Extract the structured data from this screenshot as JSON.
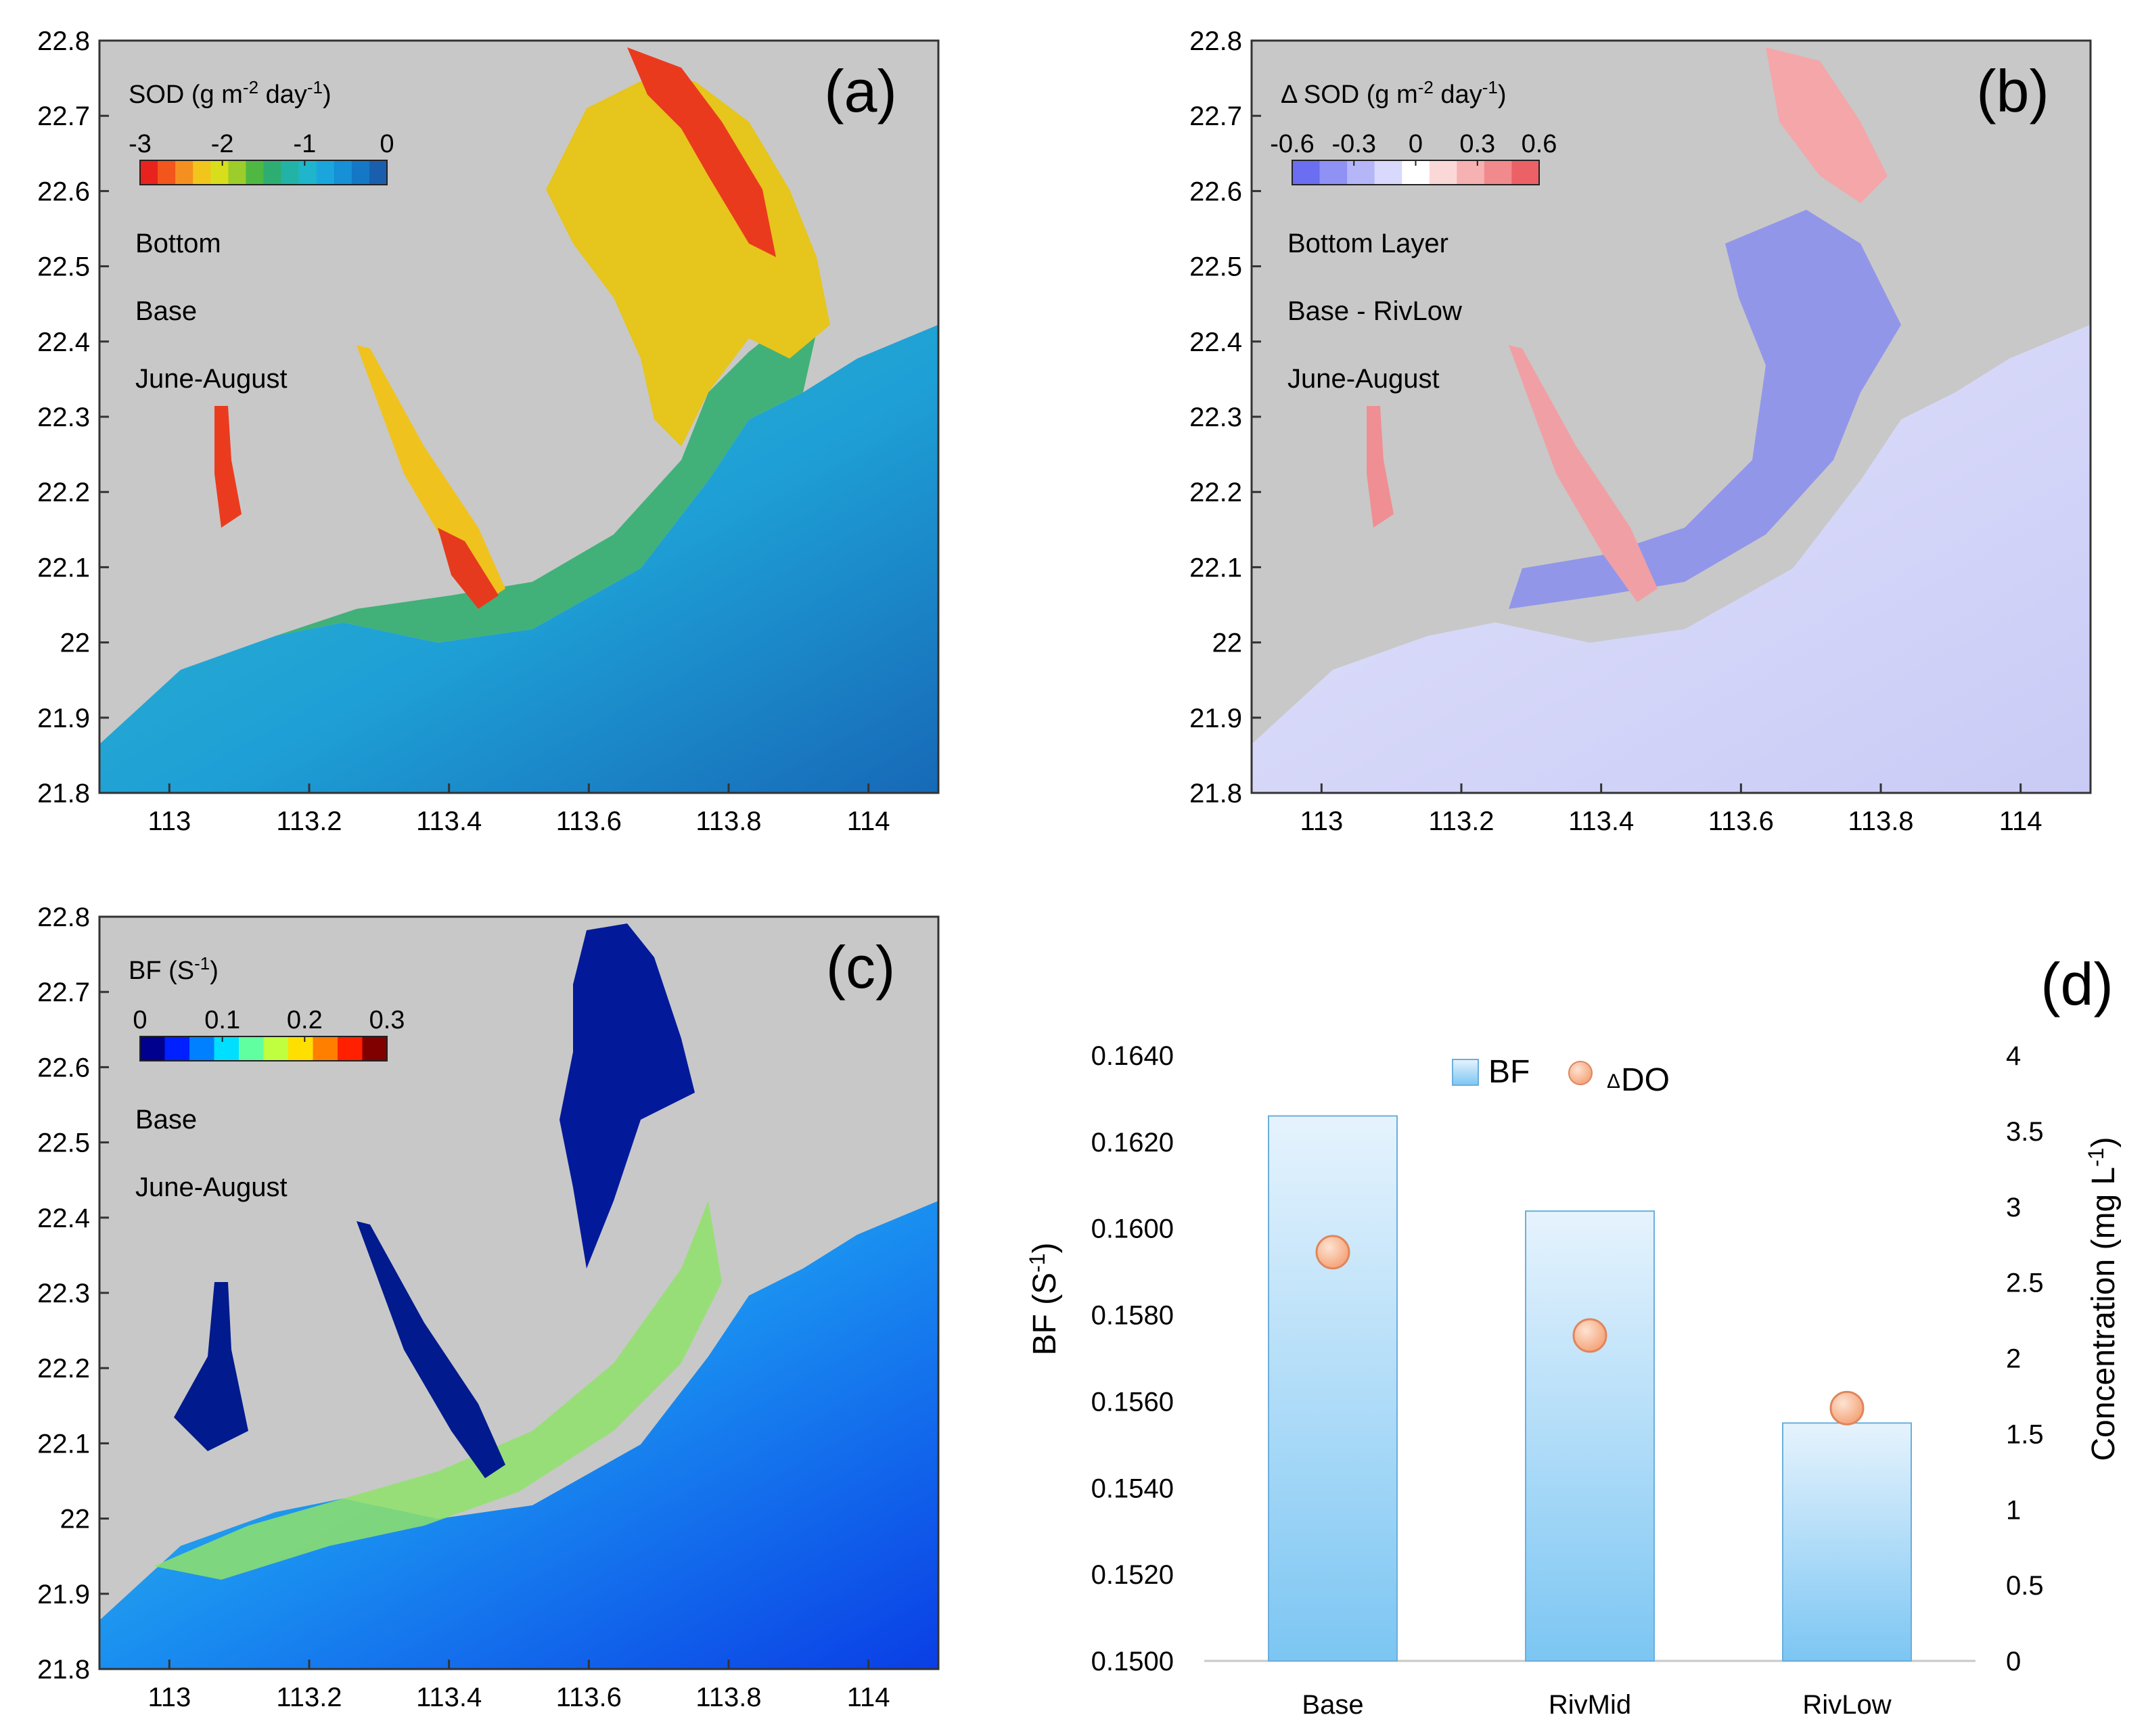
{
  "maps": {
    "x_ticks": [
      "113",
      "113.2",
      "113.4",
      "113.6",
      "113.8",
      "114"
    ],
    "y_ticks": [
      "22.8",
      "22.7",
      "22.6",
      "22.5",
      "22.4",
      "22.3",
      "22.2",
      "22.1",
      "22",
      "21.9",
      "21.8"
    ],
    "x_range": [
      112.9,
      114.1
    ],
    "y_range": [
      21.8,
      22.8
    ],
    "land_color": "#c8c8c8",
    "panels": [
      {
        "id": "a",
        "panel_label": "(a)",
        "colorbar_title_main": "SOD (g m",
        "colorbar_title_sup1": "-2",
        "colorbar_title_mid": " day",
        "colorbar_title_sup2": "-1",
        "colorbar_title_end": ")",
        "colorbar_ticks": [
          "-3",
          "-2",
          "-1",
          "0"
        ],
        "colorbar_colors": [
          "#e8231e",
          "#f2561c",
          "#f59020",
          "#f2c51d",
          "#d9de1c",
          "#9ccd2a",
          "#4eb843",
          "#2ead73",
          "#22b3a6",
          "#1fb5cc",
          "#1aa6dd",
          "#1690d6",
          "#1478c6",
          "#1a5fae"
        ],
        "annotations": [
          "Bottom",
          "Base",
          "June-August"
        ]
      },
      {
        "id": "b",
        "panel_label": "(b)",
        "colorbar_title_main": "Δ SOD (g m",
        "colorbar_title_sup1": "-2",
        "colorbar_title_mid": " day",
        "colorbar_title_sup2": "-1",
        "colorbar_title_end": ")",
        "colorbar_ticks": [
          "-0.6",
          "-0.3",
          "0",
          "0.3",
          "0.6"
        ],
        "colorbar_colors": [
          "#6b6ef0",
          "#8f91f4",
          "#b4b6f8",
          "#d8d9fc",
          "#ffffff",
          "#fbd8d8",
          "#f6b1b3",
          "#f18a8d",
          "#ec6166"
        ],
        "annotations": [
          "Bottom Layer",
          "Base - RivLow",
          "June-August"
        ]
      },
      {
        "id": "c",
        "panel_label": "(c)",
        "colorbar_title_main": "BF (S",
        "colorbar_title_sup1": "-1",
        "colorbar_title_mid": "",
        "colorbar_title_sup2": "",
        "colorbar_title_end": ")",
        "colorbar_ticks": [
          "0",
          "0.1",
          "0.2",
          "0.3"
        ],
        "colorbar_colors": [
          "#00008f",
          "#0020ff",
          "#0080ff",
          "#00dfff",
          "#60ff9f",
          "#bfff40",
          "#ffdf00",
          "#ff7f00",
          "#ff2000",
          "#800000"
        ],
        "annotations": [
          "Base",
          "June-August"
        ]
      }
    ]
  },
  "chart_data": {
    "type": "bar",
    "panel_label": "(d)",
    "categories": [
      "Base",
      "RivMid",
      "RivLow"
    ],
    "series": [
      {
        "name": "BF",
        "axis": "left",
        "kind": "bar",
        "values": [
          0.1626,
          0.1604,
          0.1555
        ]
      },
      {
        "name": "ΔDO",
        "axis": "right",
        "kind": "scatter",
        "values": [
          2.7,
          2.15,
          1.67
        ]
      }
    ],
    "ylabel_left_main": "BF (S",
    "ylabel_left_sup": "-1",
    "ylabel_left_end": ")",
    "ylabel_right_main": "Concentration (mg L",
    "ylabel_right_sup": "-1",
    "ylabel_right_end": ")",
    "ylim_left": [
      0.15,
      0.164
    ],
    "ylim_right": [
      0,
      4
    ],
    "yticks_left": [
      "0.1500",
      "0.1520",
      "0.1540",
      "0.1560",
      "0.1580",
      "0.1600",
      "0.1620",
      "0.1640"
    ],
    "yticks_right": [
      "0",
      "0.5",
      "1",
      "1.5",
      "2",
      "2.5",
      "3",
      "3.5",
      "4"
    ],
    "legend": {
      "bf_label": "BF",
      "do_prefix": "Δ",
      "do_label": "DO",
      "position": "top"
    }
  }
}
